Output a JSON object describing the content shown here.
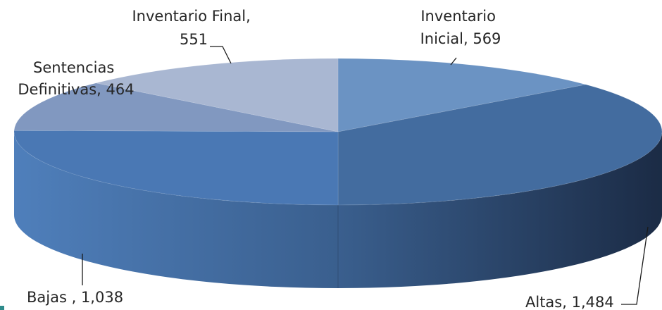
{
  "chart_data": {
    "type": "pie",
    "style": "3d",
    "slices": [
      {
        "name": "Inventario Inicial",
        "value": 569,
        "label": "Inventario Inicial, 569",
        "color": "#6b93c3"
      },
      {
        "name": "Altas",
        "value": 1484,
        "label": "Altas, 1,484",
        "color": "#436c9f"
      },
      {
        "name": "Bajas ",
        "value": 1038,
        "label": "Bajas , 1,038",
        "color": "#4a78b4"
      },
      {
        "name": "Sentencias Definitivas",
        "value": 464,
        "label": "Sentencias Definitivas, 464",
        "color": "#8198c0"
      },
      {
        "name": "Inventario Final",
        "value": 551,
        "label": "Inventario Final, 551",
        "color": "#a9b7d2"
      }
    ],
    "legend": "none",
    "title": ""
  },
  "labels": {
    "inventario_inicial": [
      "Inventario",
      "Inicial, 569"
    ],
    "altas": [
      "Altas, 1,484"
    ],
    "bajas": [
      "Bajas , 1,038"
    ],
    "sentencias": [
      "Sentencias",
      "Definitivas, 464"
    ],
    "inventario_final": [
      "Inventario Final,",
      "551"
    ]
  }
}
